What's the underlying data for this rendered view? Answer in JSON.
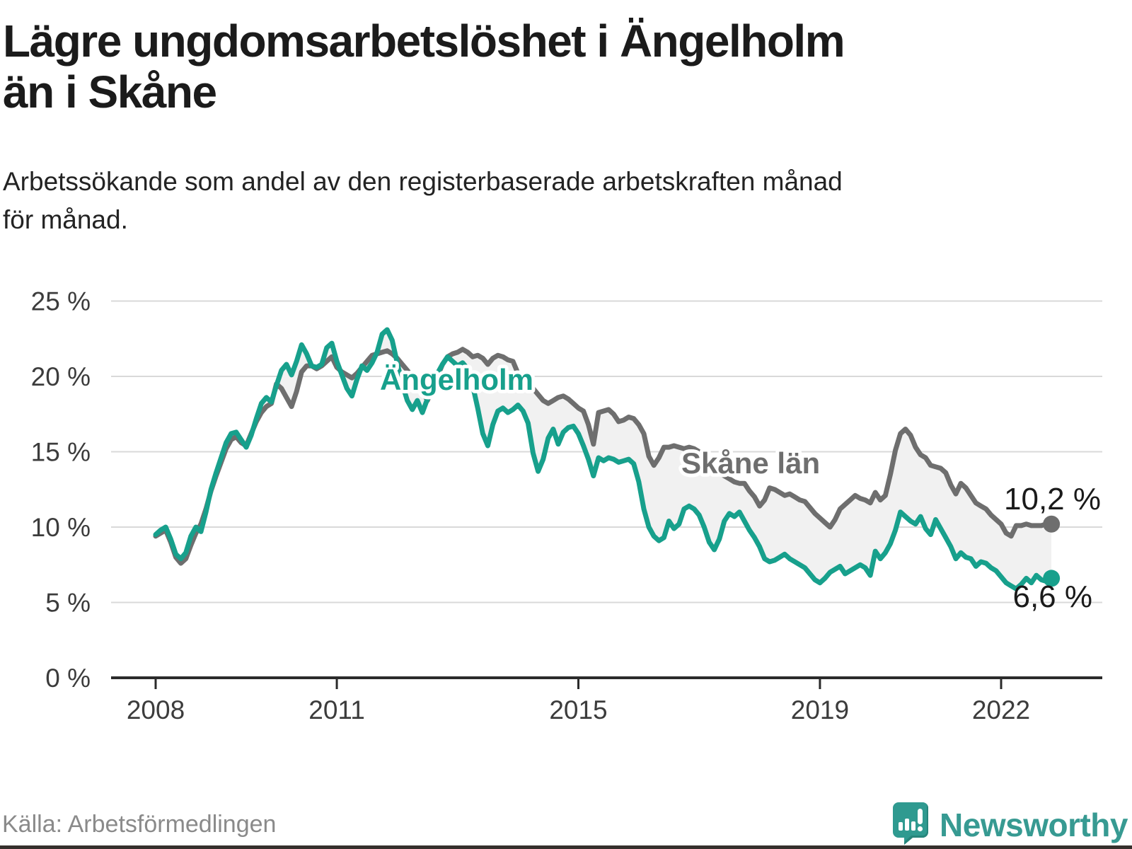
{
  "header": {
    "title_line1": "Lägre ungdomsarbetslöshet i Ängelholm",
    "title_line2": "än i Skåne",
    "subtitle_line1": "Arbetssökande som andel av den registerbaserade arbetskraften månad",
    "subtitle_line2": "för månad."
  },
  "footer": {
    "source": "Källa: Arbetsförmedlingen",
    "brand": "Newsworthy",
    "logo_icon": "bar-chart-speech-bubble-icon"
  },
  "colors": {
    "accent_teal": "#17a08c",
    "series_gray": "#6e6e6e",
    "fill_between": "#f1f1f1",
    "gridline": "#d9d9d9",
    "axis": "#2b2b2b",
    "tick_label": "#3c3c3c",
    "end_label": "#1a1a1a",
    "brand_teal": "#379a92",
    "title": "#1b1b1b",
    "source_gray": "#8a8a8a"
  },
  "chart_data": {
    "type": "line",
    "unit": "%",
    "freq": "monthly",
    "x_start": "2008-01",
    "x_end": "2022-11",
    "x_tick_years": [
      2008,
      2011,
      2015,
      2019,
      2022
    ],
    "x_tick_labels": [
      "2008",
      "2011",
      "2015",
      "2019",
      "2022"
    ],
    "y_ticks": [
      0,
      5,
      10,
      15,
      20,
      25
    ],
    "y_tick_labels": [
      "0 %",
      "5 %",
      "10 %",
      "15 %",
      "20 %",
      "25 %"
    ],
    "ylim": [
      0,
      25
    ],
    "grid": "horizontal-only",
    "legend": "inline-labels",
    "series": [
      {
        "name": "Skåne län",
        "color": "#6e6e6e",
        "end_label": "10,2 %",
        "end_value": 10.2,
        "values": [
          9.4,
          9.6,
          9.8,
          9.0,
          8.0,
          7.6,
          7.9,
          8.8,
          9.6,
          10.2,
          11.2,
          12.4,
          13.4,
          14.3,
          15.2,
          15.8,
          16.0,
          15.6,
          15.4,
          16.2,
          17.0,
          17.6,
          18.0,
          18.2,
          19.5,
          19.2,
          18.6,
          18.0,
          19.0,
          20.3,
          20.7,
          20.7,
          20.5,
          20.7,
          21.0,
          21.3,
          20.6,
          20.3,
          20.1,
          19.9,
          20.2,
          20.6,
          21.0,
          21.4,
          21.5,
          21.6,
          21.7,
          21.5,
          21.2,
          20.8,
          20.4,
          20.0,
          19.6,
          19.0,
          18.4,
          19.2,
          20.0,
          20.8,
          21.3,
          21.5,
          21.6,
          21.8,
          21.6,
          21.3,
          21.4,
          21.2,
          20.8,
          21.2,
          21.4,
          21.3,
          21.1,
          21.0,
          20.2,
          19.8,
          19.4,
          19.2,
          18.8,
          18.4,
          18.2,
          18.4,
          18.6,
          18.7,
          18.5,
          18.2,
          17.9,
          17.7,
          16.8,
          15.5,
          17.6,
          17.7,
          17.8,
          17.5,
          17.0,
          17.1,
          17.3,
          17.2,
          16.8,
          16.2,
          14.7,
          14.1,
          14.6,
          15.3,
          15.3,
          15.4,
          15.3,
          15.2,
          15.3,
          15.2,
          15.0,
          14.6,
          14.2,
          13.8,
          13.6,
          13.4,
          13.2,
          13.0,
          12.9,
          12.9,
          12.4,
          12.0,
          11.4,
          11.8,
          12.6,
          12.5,
          12.3,
          12.1,
          12.2,
          12.0,
          11.8,
          11.7,
          11.3,
          10.9,
          10.6,
          10.3,
          10.0,
          10.5,
          11.2,
          11.5,
          11.8,
          12.1,
          11.9,
          11.8,
          11.6,
          12.3,
          11.8,
          12.1,
          13.5,
          15.1,
          16.2,
          16.5,
          16.1,
          15.3,
          14.8,
          14.6,
          14.1,
          14.0,
          13.9,
          13.6,
          12.8,
          12.2,
          12.9,
          12.6,
          12.1,
          11.6,
          11.4,
          11.2,
          10.8,
          10.5,
          10.2,
          9.6,
          9.4,
          10.1,
          10.1,
          10.2,
          10.1,
          10.1,
          10.1,
          10.2,
          10.2
        ]
      },
      {
        "name": "Ängelholm",
        "color": "#17a08c",
        "end_label": "6,6 %",
        "end_value": 6.6,
        "values": [
          9.5,
          9.8,
          10.0,
          9.2,
          8.2,
          7.9,
          8.3,
          9.4,
          10.0,
          9.7,
          11.0,
          12.5,
          13.6,
          14.6,
          15.6,
          16.2,
          16.3,
          15.8,
          15.3,
          16.1,
          17.2,
          18.2,
          18.6,
          18.3,
          19.4,
          20.4,
          20.8,
          20.1,
          21.0,
          22.1,
          21.5,
          20.7,
          20.6,
          20.8,
          21.9,
          22.2,
          21.0,
          20.1,
          19.2,
          18.7,
          19.8,
          20.7,
          20.4,
          20.9,
          21.6,
          22.8,
          23.1,
          22.4,
          20.9,
          19.5,
          18.4,
          17.8,
          18.4,
          17.6,
          18.5,
          19.4,
          20.2,
          20.8,
          21.3,
          21.0,
          20.7,
          20.9,
          20.5,
          19.4,
          17.9,
          16.2,
          15.4,
          16.8,
          17.7,
          17.9,
          17.6,
          17.8,
          18.1,
          17.7,
          16.9,
          14.9,
          13.7,
          14.5,
          15.9,
          16.5,
          15.5,
          16.3,
          16.6,
          16.7,
          16.2,
          15.4,
          14.5,
          13.4,
          14.6,
          14.4,
          14.6,
          14.5,
          14.3,
          14.4,
          14.5,
          14.2,
          13.0,
          11.2,
          10.0,
          9.4,
          9.1,
          9.3,
          10.4,
          9.9,
          10.2,
          11.2,
          11.4,
          11.2,
          10.8,
          10.0,
          9.0,
          8.5,
          9.2,
          10.4,
          10.9,
          10.7,
          11.0,
          10.4,
          9.8,
          9.3,
          8.7,
          7.9,
          7.7,
          7.8,
          8.0,
          8.2,
          7.9,
          7.7,
          7.5,
          7.3,
          6.9,
          6.5,
          6.3,
          6.6,
          7.0,
          7.2,
          7.4,
          6.9,
          7.1,
          7.3,
          7.5,
          7.3,
          6.8,
          8.4,
          7.9,
          8.3,
          8.9,
          9.8,
          11.0,
          10.7,
          10.4,
          10.2,
          10.7,
          9.9,
          9.5,
          10.5,
          9.9,
          9.3,
          8.7,
          7.9,
          8.3,
          8.0,
          7.9,
          7.4,
          7.7,
          7.6,
          7.3,
          7.1,
          6.7,
          6.3,
          6.1,
          5.9,
          6.2,
          6.6,
          6.3,
          6.8,
          6.5,
          6.4,
          6.6
        ]
      }
    ]
  }
}
